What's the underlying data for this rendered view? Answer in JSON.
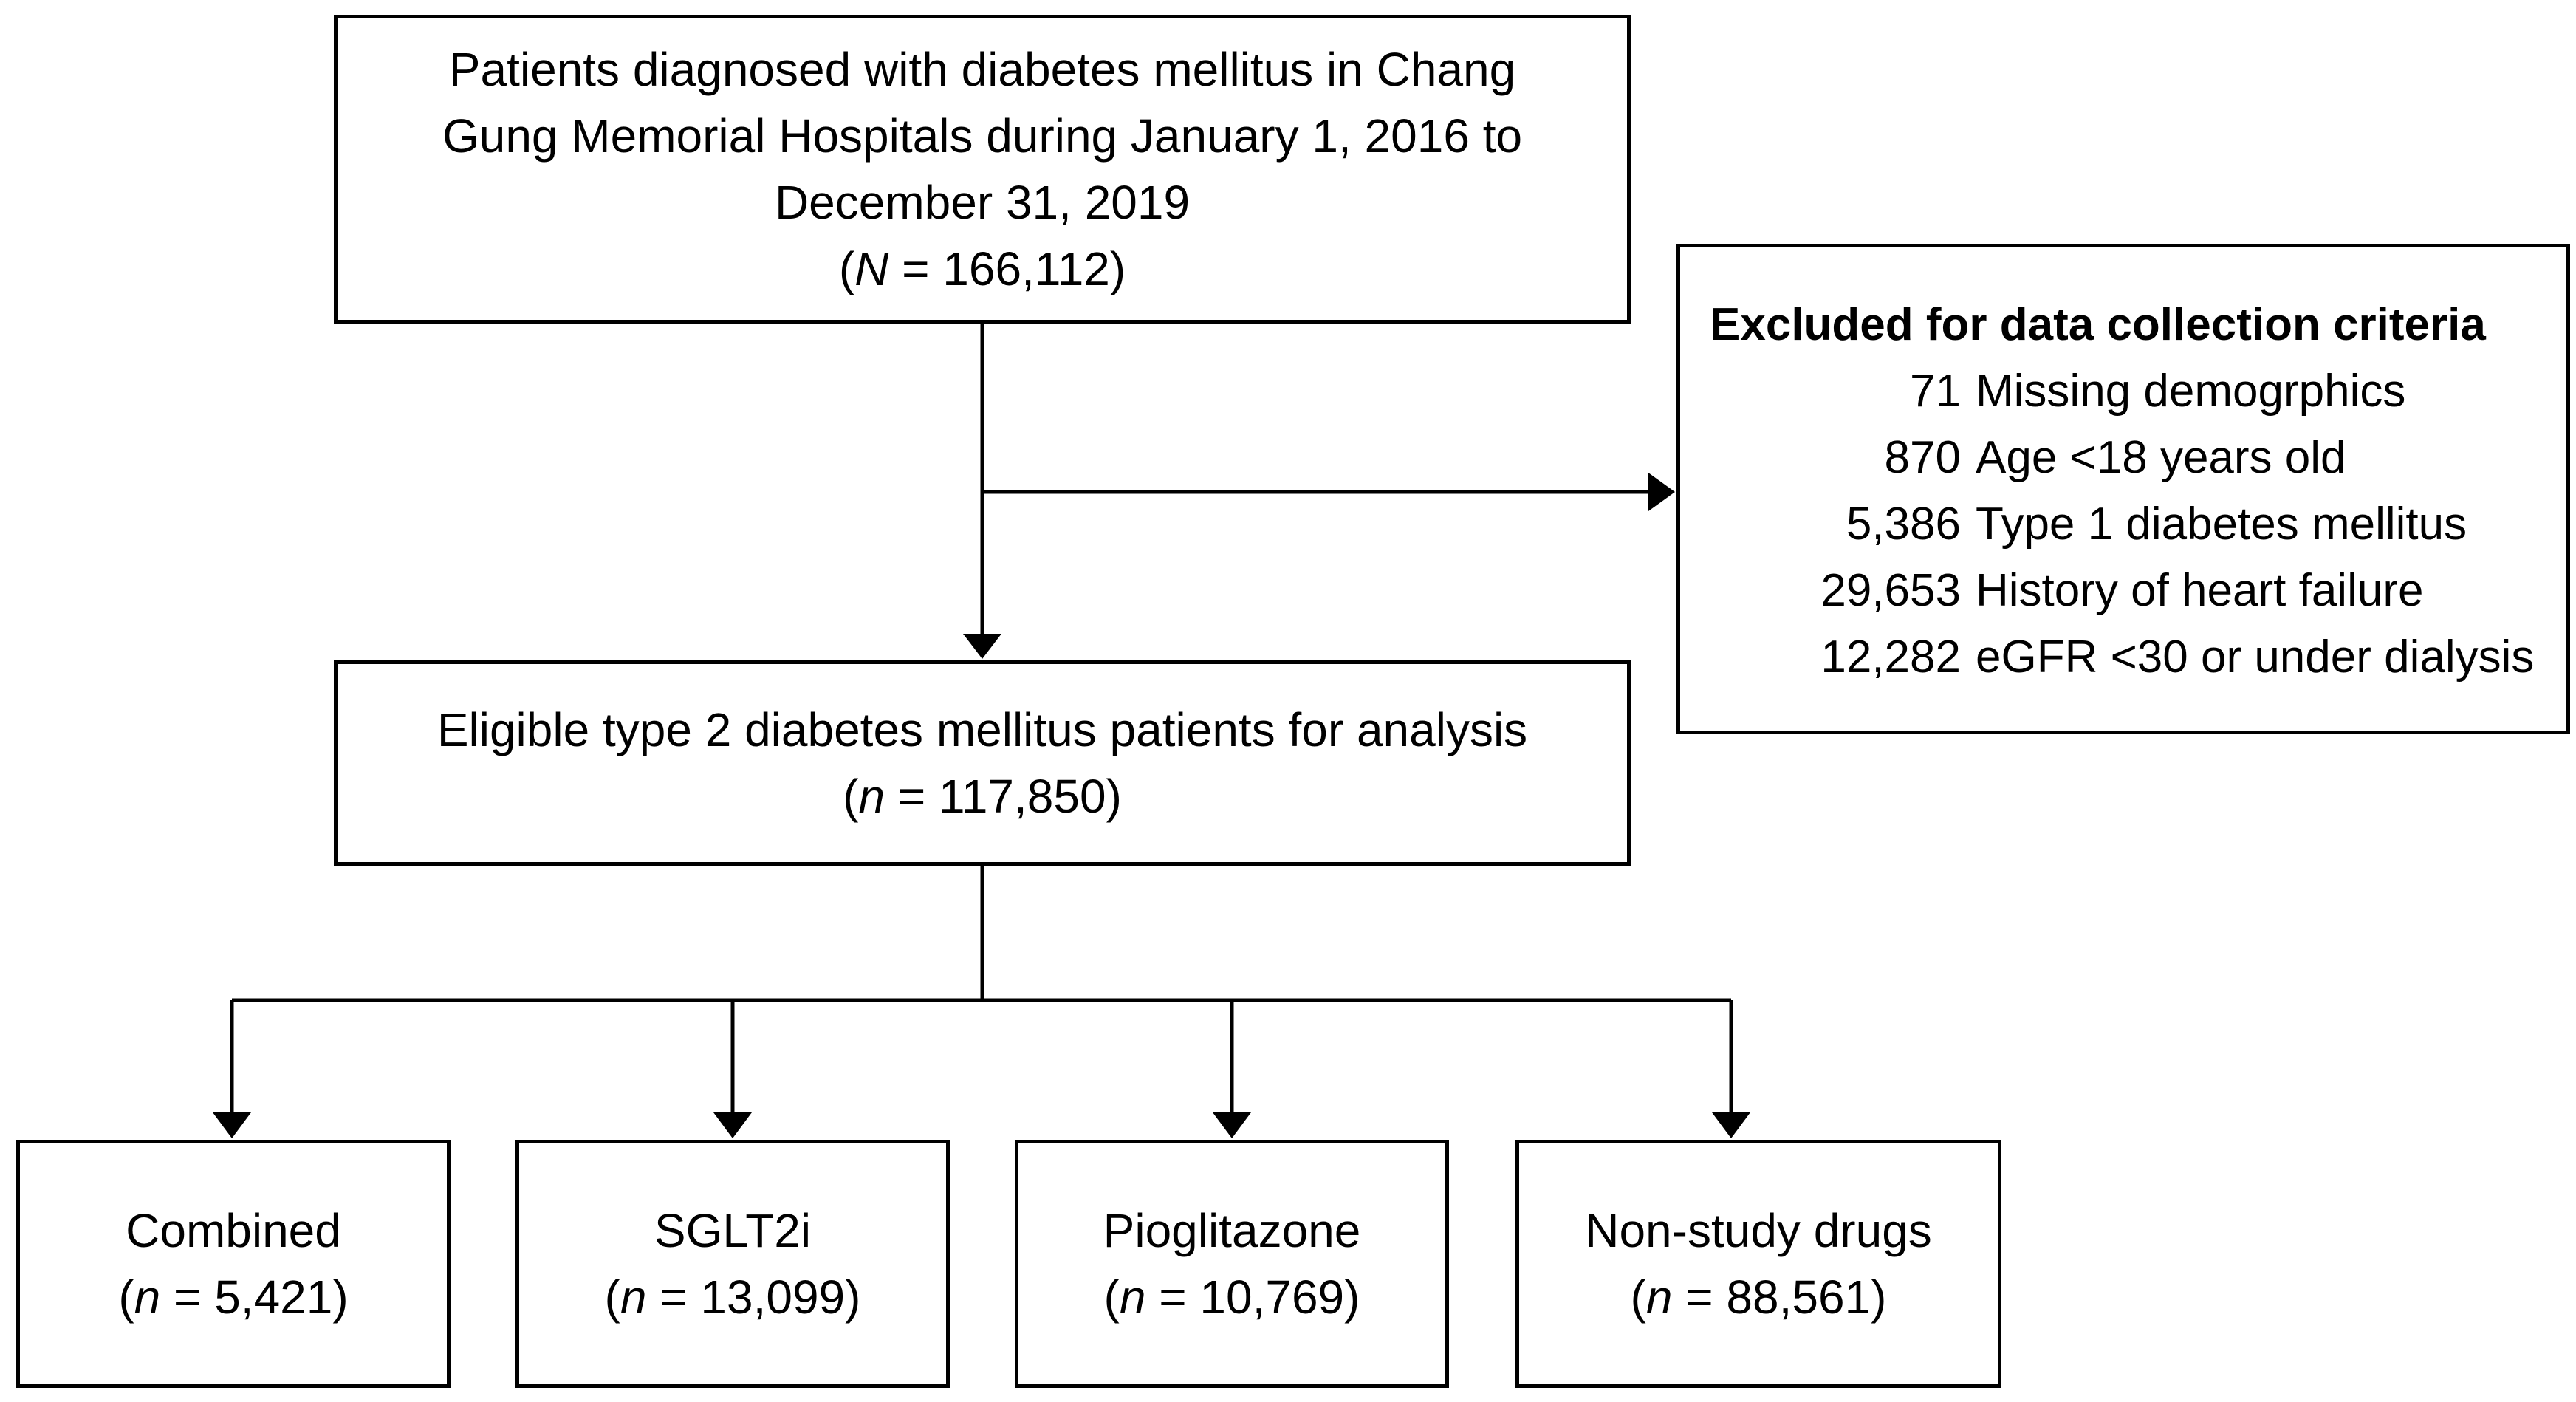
{
  "source": {
    "lines": [
      "Patients diagnosed with diabetes mellitus in Chang",
      "Gung Memorial Hospitals during January 1, 2016 to",
      "December 31, 2019"
    ],
    "count_prefix": "(",
    "count_symbol": "N",
    "count_value": " = 166,112)"
  },
  "exclusion": {
    "title": "Excluded for data collection criteria",
    "rows": [
      {
        "count": "71",
        "label": "Missing demogrphics"
      },
      {
        "count": "870",
        "label": "Age <18 years old"
      },
      {
        "count": "5,386",
        "label": "Type 1 diabetes mellitus"
      },
      {
        "count": "29,653",
        "label": "History of heart failure"
      },
      {
        "count": "12,282",
        "label": "eGFR <30 or under dialysis"
      }
    ]
  },
  "eligible": {
    "line": "Eligible type 2 diabetes mellitus patients for analysis",
    "count_prefix": "(",
    "count_symbol": "n",
    "count_value": " = 117,850)"
  },
  "groups": [
    {
      "name": "Combined",
      "count_prefix": "(",
      "count_symbol": "n",
      "count_value": " = 5,421)"
    },
    {
      "name": "SGLT2i",
      "count_prefix": "(",
      "count_symbol": "n",
      "count_value": " = 13,099)"
    },
    {
      "name": "Pioglitazone",
      "count_prefix": "(",
      "count_symbol": "n",
      "count_value": " = 10,769)"
    },
    {
      "name": "Non-study drugs",
      "count_prefix": "(",
      "count_symbol": "n",
      "count_value": " = 88,561)"
    }
  ]
}
